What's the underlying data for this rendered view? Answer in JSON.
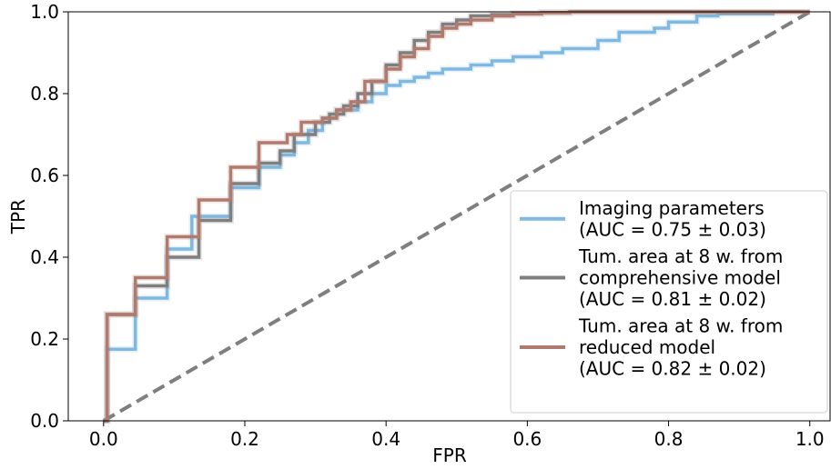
{
  "chart_data": {
    "type": "line",
    "xlabel": "FPR",
    "ylabel": "TPR",
    "xlim": [
      -0.05,
      1.03
    ],
    "ylim": [
      0.0,
      1.0
    ],
    "xticks": [
      "0.0",
      "0.2",
      "0.4",
      "0.6",
      "0.8",
      "1.0"
    ],
    "yticks": [
      "0.0",
      "0.2",
      "0.4",
      "0.6",
      "0.8",
      "1.0"
    ],
    "grid": false,
    "legend_position": "bottom-right",
    "series": [
      {
        "legend_lines": [
          "Imaging parameters",
          "(AUC = 0.75 ± 0.03)"
        ],
        "color": "#7fb8e0",
        "x": [
          0.0,
          0.005,
          0.005,
          0.045,
          0.045,
          0.09,
          0.09,
          0.125,
          0.125,
          0.18,
          0.18,
          0.22,
          0.22,
          0.25,
          0.25,
          0.27,
          0.27,
          0.29,
          0.29,
          0.31,
          0.31,
          0.33,
          0.33,
          0.36,
          0.36,
          0.38,
          0.38,
          0.4,
          0.4,
          0.42,
          0.42,
          0.44,
          0.44,
          0.46,
          0.46,
          0.48,
          0.48,
          0.52,
          0.52,
          0.55,
          0.55,
          0.58,
          0.58,
          0.62,
          0.62,
          0.65,
          0.65,
          0.7,
          0.7,
          0.73,
          0.73,
          0.78,
          0.78,
          0.8,
          0.8,
          0.84,
          0.84,
          0.87,
          0.87,
          0.95
        ],
        "y": [
          0.0,
          0.0,
          0.175,
          0.175,
          0.3,
          0.3,
          0.42,
          0.42,
          0.5,
          0.5,
          0.57,
          0.57,
          0.62,
          0.62,
          0.65,
          0.65,
          0.68,
          0.68,
          0.71,
          0.71,
          0.74,
          0.74,
          0.76,
          0.76,
          0.78,
          0.78,
          0.8,
          0.8,
          0.82,
          0.82,
          0.83,
          0.83,
          0.84,
          0.84,
          0.85,
          0.85,
          0.86,
          0.86,
          0.87,
          0.87,
          0.88,
          0.88,
          0.89,
          0.89,
          0.9,
          0.9,
          0.91,
          0.91,
          0.93,
          0.93,
          0.95,
          0.95,
          0.96,
          0.96,
          0.975,
          0.975,
          0.99,
          0.99,
          0.995,
          0.995
        ]
      },
      {
        "legend_lines": [
          "Tum. area at 8 w. from",
          "comprehensive model",
          "(AUC = 0.81 ± 0.02)"
        ],
        "color": "#7f7f7f",
        "x": [
          0.0,
          0.005,
          0.005,
          0.045,
          0.045,
          0.09,
          0.09,
          0.135,
          0.135,
          0.18,
          0.18,
          0.22,
          0.22,
          0.25,
          0.25,
          0.27,
          0.27,
          0.3,
          0.3,
          0.32,
          0.32,
          0.34,
          0.34,
          0.36,
          0.36,
          0.38,
          0.38,
          0.4,
          0.4,
          0.42,
          0.42,
          0.44,
          0.44,
          0.46,
          0.46,
          0.48,
          0.48,
          0.5,
          0.5,
          0.52,
          0.52,
          0.55,
          0.55,
          0.58,
          0.58,
          0.62,
          0.62,
          0.66,
          0.66,
          0.7,
          0.7,
          1.0
        ],
        "y": [
          0.0,
          0.0,
          0.26,
          0.26,
          0.33,
          0.33,
          0.4,
          0.4,
          0.49,
          0.49,
          0.58,
          0.58,
          0.63,
          0.63,
          0.66,
          0.66,
          0.7,
          0.7,
          0.73,
          0.73,
          0.75,
          0.75,
          0.77,
          0.77,
          0.8,
          0.8,
          0.83,
          0.83,
          0.87,
          0.87,
          0.9,
          0.9,
          0.93,
          0.93,
          0.95,
          0.95,
          0.97,
          0.97,
          0.98,
          0.98,
          0.99,
          0.99,
          0.993,
          0.993,
          0.996,
          0.996,
          0.998,
          0.998,
          1.0,
          1.0,
          1.0,
          1.0
        ]
      },
      {
        "legend_lines": [
          "Tum. area at 8 w. from",
          "reduced model",
          "(AUC = 0.82 ± 0.02)"
        ],
        "color": "#b07a6e",
        "x": [
          0.0,
          0.005,
          0.005,
          0.045,
          0.045,
          0.09,
          0.09,
          0.135,
          0.135,
          0.18,
          0.18,
          0.22,
          0.22,
          0.26,
          0.26,
          0.28,
          0.28,
          0.31,
          0.31,
          0.33,
          0.33,
          0.35,
          0.35,
          0.37,
          0.37,
          0.4,
          0.4,
          0.42,
          0.42,
          0.44,
          0.44,
          0.46,
          0.46,
          0.48,
          0.48,
          0.5,
          0.5,
          0.52,
          0.52,
          0.55,
          0.55,
          0.58,
          0.58,
          0.62,
          0.62,
          0.66,
          0.66,
          0.7,
          0.7,
          1.0
        ],
        "y": [
          0.0,
          0.0,
          0.26,
          0.26,
          0.35,
          0.35,
          0.45,
          0.45,
          0.54,
          0.54,
          0.62,
          0.62,
          0.68,
          0.68,
          0.7,
          0.7,
          0.73,
          0.73,
          0.74,
          0.74,
          0.76,
          0.76,
          0.78,
          0.78,
          0.83,
          0.83,
          0.86,
          0.86,
          0.89,
          0.89,
          0.91,
          0.91,
          0.94,
          0.94,
          0.96,
          0.96,
          0.97,
          0.97,
          0.98,
          0.98,
          0.99,
          0.99,
          0.995,
          0.995,
          0.998,
          0.998,
          1.0,
          1.0,
          1.0,
          1.0
        ]
      }
    ],
    "reference_line": {
      "x": [
        0.0,
        1.0
      ],
      "y": [
        0.0,
        1.0
      ],
      "color": "#7f7f7f",
      "style": "dashed"
    }
  }
}
